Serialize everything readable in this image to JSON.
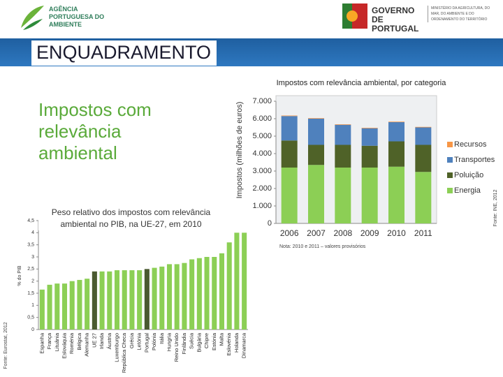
{
  "header": {
    "agency": "AGÊNCIA PORTUGUESA DO AMBIENTE",
    "government": "GOVERNO DE PORTUGAL",
    "ministry": "MINISTÉRIO DA AGRICULTURA, DO MAR, DO AMBIENTE E DO ORDENAMENTO DO TERRITÓRIO",
    "section": "ENQUADRAMENTO"
  },
  "slide_title": "Impostos com relevância ambiental",
  "slide_subtitle": "Peso relativo dos impostos com relevância ambiental no PIB, na UE-27, em 2010",
  "chart_data": [
    {
      "type": "stacked-bar",
      "title": "Impostos com relevância ambiental, por categoria",
      "y_label": "Impostos (milhões de euros)",
      "note": "Nota: 2010 e 2011 – valores provisórios",
      "source": "Fonte: INE, 2012",
      "categories": [
        "2006",
        "2007",
        "2008",
        "2009",
        "2010",
        "2011"
      ],
      "series": [
        {
          "name": "Energia",
          "color": "#8ccf55",
          "values": [
            3200,
            3350,
            3200,
            3200,
            3250,
            2950
          ]
        },
        {
          "name": "Poluição",
          "color": "#4f6228",
          "values": [
            1550,
            1150,
            1300,
            1250,
            1450,
            1550
          ]
        },
        {
          "name": "Transportes",
          "color": "#4f81bd",
          "values": [
            1400,
            1500,
            1150,
            1000,
            1100,
            1000
          ]
        },
        {
          "name": "Recursos",
          "color": "#f79646",
          "values": [
            30,
            30,
            30,
            30,
            30,
            30
          ]
        }
      ],
      "ylim": [
        0,
        7000
      ],
      "yticks": [
        0,
        {
          "value": 1000,
          "label": "1.000"
        },
        {
          "value": 2000,
          "label": "2.000"
        },
        {
          "value": 3000,
          "label": "3.000"
        },
        {
          "value": 4000,
          "label": "4.000"
        },
        {
          "value": 5000,
          "label": "5.000"
        },
        {
          "value": 6000,
          "label": "6.000"
        },
        {
          "value": 7000,
          "label": "7.000"
        }
      ],
      "grid": false,
      "legend": "right"
    },
    {
      "type": "bar",
      "y_label": "% do PIB",
      "source": "Fonte: Eurostat, 2012",
      "categories": [
        "Espanha",
        "França",
        "Lituânia",
        "Eslováquia",
        "Roménia",
        "Bélgica",
        "Alemanha",
        "UE 27",
        "Irlanda",
        "Áustria",
        "Luxemburgo",
        "República Checa",
        "Grécia",
        "Letónia",
        "Portugal",
        "Polónia",
        "Itália",
        "Hungria",
        "Reino Unido",
        "Finlândia",
        "Suécia",
        "Bulgária",
        "Chipre",
        "Estónia",
        "Malta",
        "Eslovénia",
        "Holanda",
        "Dinamarca"
      ],
      "values": [
        1.65,
        1.85,
        1.9,
        1.9,
        2.0,
        2.05,
        2.1,
        2.4,
        2.4,
        2.4,
        2.45,
        2.45,
        2.45,
        2.45,
        2.5,
        2.55,
        2.6,
        2.7,
        2.7,
        2.75,
        2.9,
        2.95,
        3.0,
        3.0,
        3.15,
        3.6,
        4.0,
        4.0
      ],
      "colors": [
        "#8ccf55",
        "#8ccf55",
        "#8ccf55",
        "#8ccf55",
        "#8ccf55",
        "#8ccf55",
        "#8ccf55",
        "#4a5a30",
        "#8ccf55",
        "#8ccf55",
        "#8ccf55",
        "#8ccf55",
        "#8ccf55",
        "#8ccf55",
        "#4a5a30",
        "#8ccf55",
        "#8ccf55",
        "#8ccf55",
        "#8ccf55",
        "#8ccf55",
        "#8ccf55",
        "#8ccf55",
        "#8ccf55",
        "#8ccf55",
        "#8ccf55",
        "#8ccf55",
        "#8ccf55",
        "#8ccf55"
      ],
      "ylim": [
        0,
        4.5
      ],
      "yticks": [
        0,
        {
          "value": 0.5,
          "label": "0,5"
        },
        1,
        {
          "value": 1.5,
          "label": "1,5"
        },
        2,
        {
          "value": 2.5,
          "label": "2,5"
        },
        3,
        {
          "value": 3.5,
          "label": "3,5"
        },
        4,
        {
          "value": 4.5,
          "label": "4,5"
        }
      ],
      "grid": false
    }
  ]
}
